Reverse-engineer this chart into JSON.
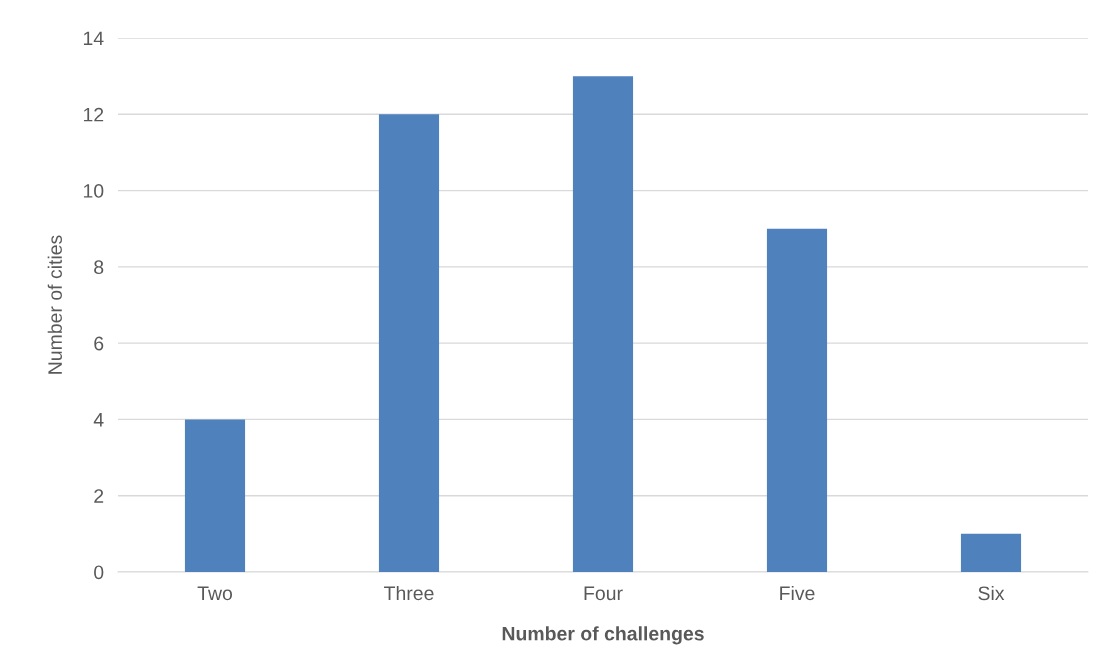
{
  "chart_data": {
    "type": "bar",
    "xlabel": "Number of challenges",
    "ylabel": "Number of cities",
    "categories": [
      "Two",
      "Three",
      "Four",
      "Five",
      "Six"
    ],
    "values": [
      4,
      12,
      13,
      9,
      1
    ],
    "color": "#4f81bd",
    "ylim": [
      0,
      14
    ],
    "yticks": [
      0,
      2,
      4,
      6,
      8,
      10,
      12,
      14
    ],
    "grid": "y"
  }
}
